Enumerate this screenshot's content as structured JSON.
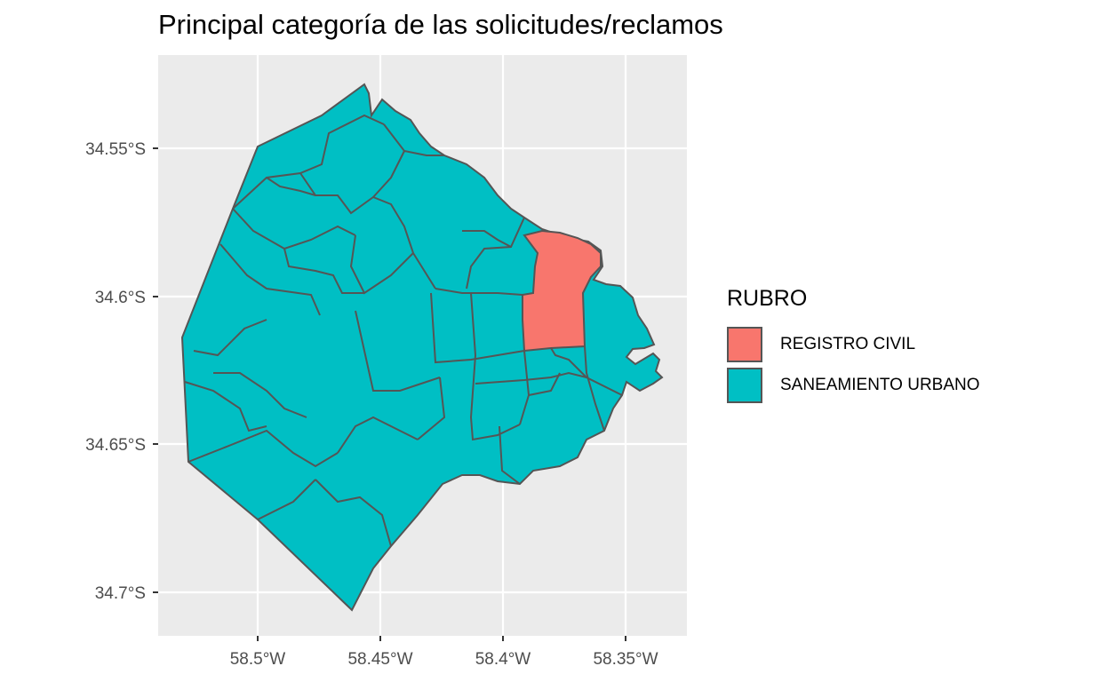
{
  "title": "Principal categoría de las solicitudes/reclamos",
  "axes": {
    "x_ticks": [
      "58.5°W",
      "58.45°W",
      "58.4°W",
      "58.35°W"
    ],
    "y_ticks": [
      "34.55°S",
      "34.6°S",
      "34.65°S",
      "34.7°S"
    ]
  },
  "legend": {
    "title": "RUBRO",
    "items": [
      {
        "label": "REGISTRO CIVIL",
        "color": "#F8766D"
      },
      {
        "label": "SANEAMIENTO URBANO",
        "color": "#00BFC4"
      }
    ]
  },
  "colors": {
    "panel": "#EBEBEB",
    "grid": "#FFFFFF",
    "border": "#555555"
  }
}
